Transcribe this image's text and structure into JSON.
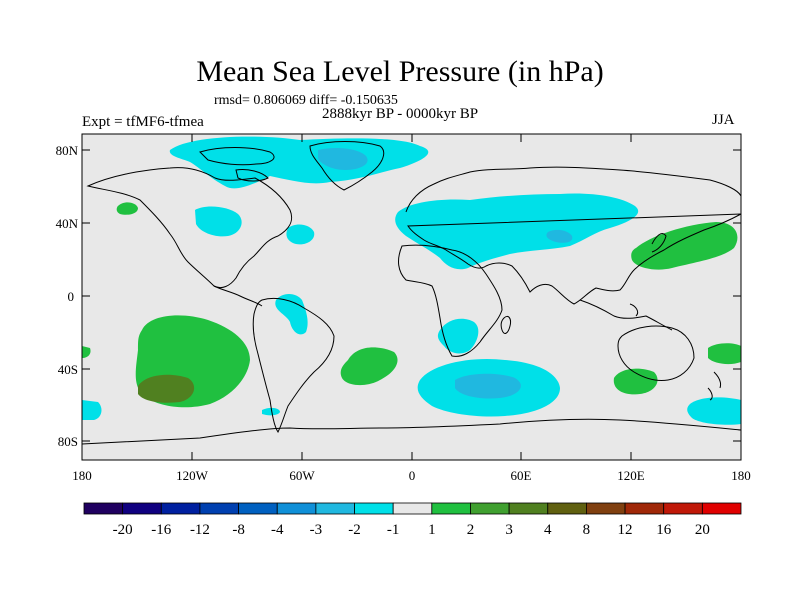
{
  "map": {
    "title": "Mean Sea Level Pressure (in hPa)",
    "stats_text": "rmsd= 0.806069 diff= -0.150635",
    "period_text": "2888kyr BP - 0000kyr BP",
    "experiment_text": "Expt = tfMF6-tfmea",
    "season": "JJA",
    "lat_labels": [
      "80N",
      "40N",
      "0",
      "40S",
      "80S"
    ],
    "lon_labels": [
      "180",
      "120W",
      "60W",
      "0",
      "60E",
      "120E",
      "180"
    ]
  },
  "colorbar": {
    "colors": [
      "#200060",
      "#100080",
      "#0020a0",
      "#0040b0",
      "#0060c0",
      "#1090d8",
      "#20b8e0",
      "#00e0e8",
      "#e8e8e8",
      "#20c040",
      "#40a030",
      "#508020",
      "#606010",
      "#804010",
      "#a02808",
      "#c01808",
      "#e00000"
    ],
    "labels": [
      "-20",
      "-16",
      "-12",
      "-8",
      "-4",
      "-3",
      "-2",
      "-1",
      "1",
      "2",
      "3",
      "4",
      "8",
      "12",
      "16",
      "20"
    ]
  },
  "legend": {
    "ocean_bg": "#e8e8e8",
    "neg_light": "#00e0e8",
    "neg_mid": "#20b8e0",
    "pos_light": "#20c040",
    "pos_mid": "#508020"
  }
}
